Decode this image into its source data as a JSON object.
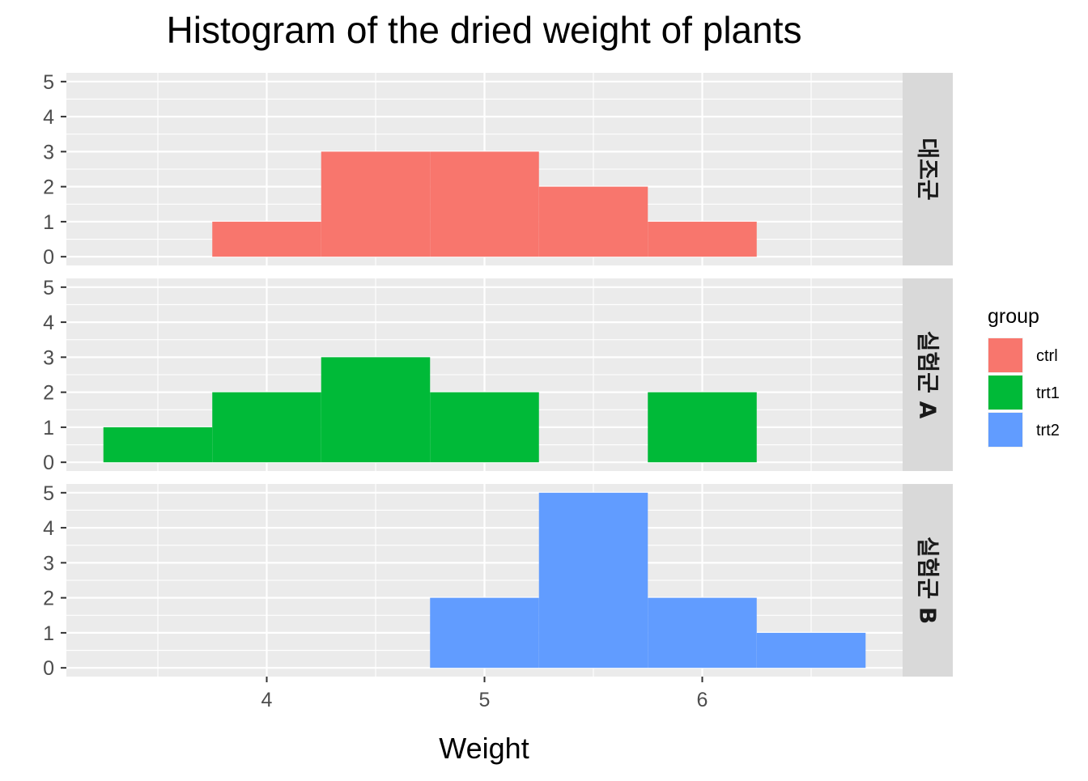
{
  "chart_data": {
    "type": "bar",
    "title": "Histogram of the dried weight of plants",
    "xlabel": "Weight",
    "ylabel": "",
    "xlim": [
      3.08,
      6.92
    ],
    "ylim": [
      -0.25,
      5.25
    ],
    "x_ticks": [
      4,
      5,
      6
    ],
    "y_ticks": [
      0,
      1,
      2,
      3,
      4,
      5
    ],
    "binwidth": 0.5,
    "grid": true,
    "legend": {
      "title": "group",
      "position": "right",
      "entries": [
        {
          "label": "ctrl",
          "color": "#F8766D"
        },
        {
          "label": "trt1",
          "color": "#00BA38"
        },
        {
          "label": "trt2",
          "color": "#619CFF"
        }
      ]
    },
    "panels": [
      {
        "strip": "대조군",
        "group": "ctrl",
        "color": "#F8766D",
        "bins": [
          {
            "x0": 3.75,
            "x1": 4.25,
            "count": 1
          },
          {
            "x0": 4.25,
            "x1": 4.75,
            "count": 3
          },
          {
            "x0": 4.75,
            "x1": 5.25,
            "count": 3
          },
          {
            "x0": 5.25,
            "x1": 5.75,
            "count": 2
          },
          {
            "x0": 5.75,
            "x1": 6.25,
            "count": 1
          }
        ]
      },
      {
        "strip": "실험군 A",
        "group": "trt1",
        "color": "#00BA38",
        "bins": [
          {
            "x0": 3.25,
            "x1": 3.75,
            "count": 1
          },
          {
            "x0": 3.75,
            "x1": 4.25,
            "count": 2
          },
          {
            "x0": 4.25,
            "x1": 4.75,
            "count": 3
          },
          {
            "x0": 4.75,
            "x1": 5.25,
            "count": 2
          },
          {
            "x0": 5.25,
            "x1": 5.75,
            "count": 0
          },
          {
            "x0": 5.75,
            "x1": 6.25,
            "count": 2
          }
        ]
      },
      {
        "strip": "실험군 B",
        "group": "trt2",
        "color": "#619CFF",
        "bins": [
          {
            "x0": 4.75,
            "x1": 5.25,
            "count": 2
          },
          {
            "x0": 5.25,
            "x1": 5.75,
            "count": 5
          },
          {
            "x0": 5.75,
            "x1": 6.25,
            "count": 2
          },
          {
            "x0": 6.25,
            "x1": 6.75,
            "count": 1
          }
        ]
      }
    ]
  },
  "colors": {
    "panel_background": "#EBEBEB",
    "grid_major": "#FFFFFF",
    "strip_background": "#D9D9D9",
    "axis_text": "#4D4D4D",
    "strip_text": "#1A1A1A"
  }
}
